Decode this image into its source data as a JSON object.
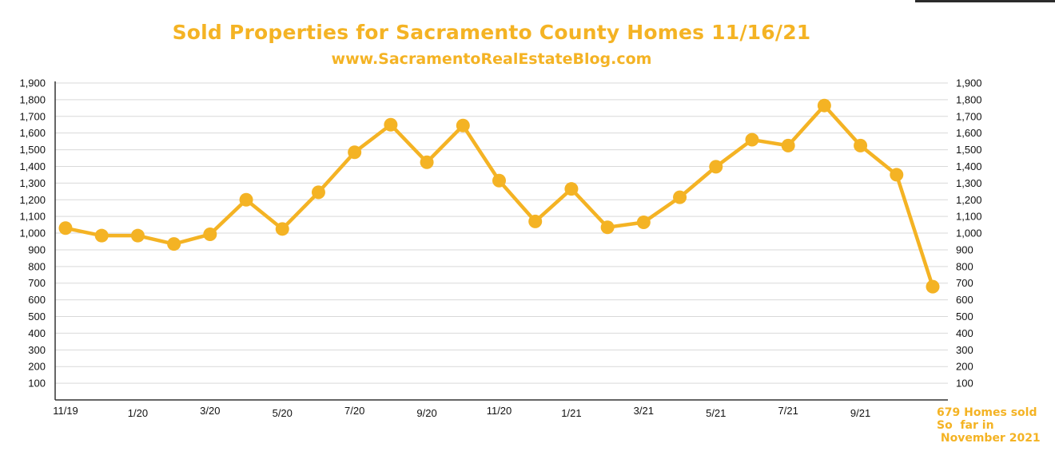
{
  "title": "Sold Properties for Sacramento County Homes 11/16/21",
  "subtitle": "www.SacramentoRealEstateBlog.com",
  "colors": {
    "series": "#f4b324",
    "grid": "#d9d9d9",
    "axis": "#333333",
    "text": "#111111"
  },
  "annotation": [
    "679 Homes sold",
    "So  far in",
    " November 2021"
  ],
  "chart_data": {
    "type": "line",
    "title": "Sold Properties for Sacramento County Homes 11/16/21",
    "subtitle": "www.SacramentoRealEstateBlog.com",
    "xlabel": "",
    "ylabel": "",
    "ylim": [
      0,
      1900
    ],
    "y_ticks": [
      "100",
      "200",
      "300",
      "400",
      "500",
      "600",
      "700",
      "800",
      "900",
      "1,000",
      "1,100",
      "1,200",
      "1,300",
      "1,400",
      "1,500",
      "1,600",
      "1,700",
      "1,800",
      "1,900"
    ],
    "y_ticks_right": [
      "100",
      "200",
      "300",
      "400",
      "500",
      "600",
      "700",
      "800",
      "900",
      "1,000",
      "1,100",
      "1,200",
      "1,300",
      "1,400",
      "1,500",
      "1,600",
      "1,700",
      "1,800",
      "1,900"
    ],
    "grid": true,
    "legend": "none",
    "x": [
      "11/19",
      "12/19",
      "1/20",
      "2/20",
      "3/20",
      "4/20",
      "5/20",
      "6/20",
      "7/20",
      "8/20",
      "9/20",
      "10/20",
      "11/20",
      "12/20",
      "1/21",
      "2/21",
      "3/21",
      "4/21",
      "5/21",
      "6/21",
      "7/21",
      "8/21",
      "9/21",
      "10/21",
      "11/21"
    ],
    "x_tick_labels": [
      {
        "index": 0,
        "label": "11/19"
      },
      {
        "index": 2,
        "label": "1/20"
      },
      {
        "index": 4,
        "label": "3/20"
      },
      {
        "index": 6,
        "label": "5/20"
      },
      {
        "index": 8,
        "label": "7/20"
      },
      {
        "index": 10,
        "label": "9/20"
      },
      {
        "index": 12,
        "label": "11/20"
      },
      {
        "index": 14,
        "label": "1/21"
      },
      {
        "index": 16,
        "label": "3/21"
      },
      {
        "index": 18,
        "label": "5/21"
      },
      {
        "index": 20,
        "label": "7/21"
      },
      {
        "index": 22,
        "label": "9/21"
      }
    ],
    "series": [
      {
        "values": [
          1030,
          985,
          985,
          935,
          993,
          1200,
          1025,
          1245,
          1485,
          1650,
          1425,
          1645,
          1315,
          1070,
          1265,
          1035,
          1065,
          1215,
          1398,
          1560,
          1525,
          1765,
          1525,
          1350,
          679
        ]
      }
    ]
  }
}
